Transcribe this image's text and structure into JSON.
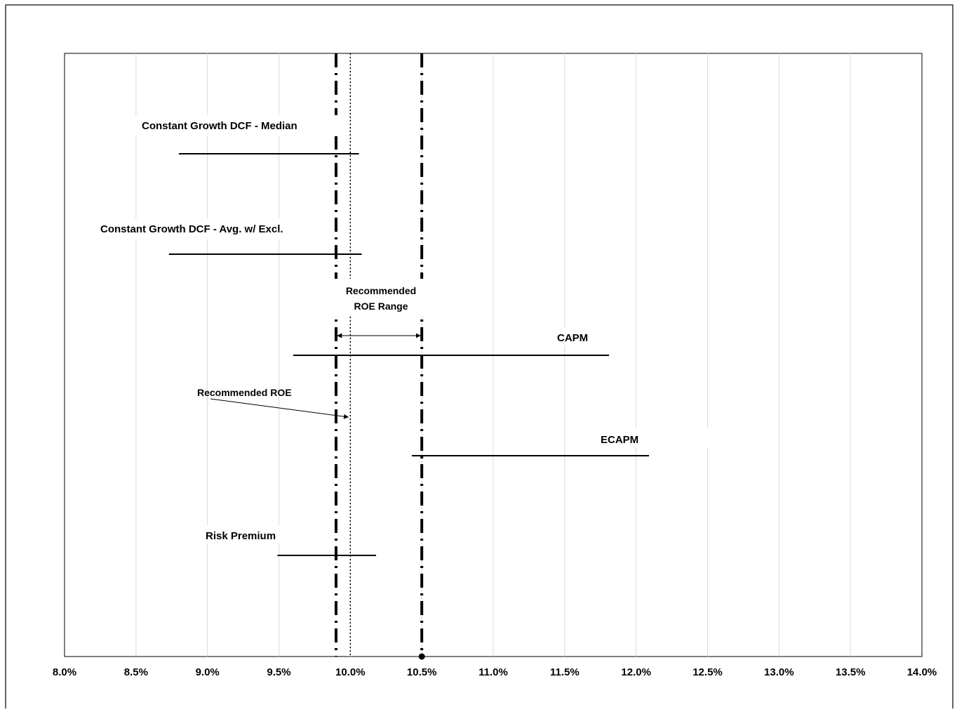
{
  "chart_data": {
    "type": "range",
    "title": "",
    "xlabel": "",
    "ylabel": "",
    "xlim": [
      8.0,
      14.0
    ],
    "x_ticks": [
      8.0,
      8.5,
      9.0,
      9.5,
      10.0,
      10.5,
      11.0,
      11.5,
      12.0,
      12.5,
      13.0,
      13.5,
      14.0
    ],
    "x_tick_labels": [
      "8.0%",
      "8.5%",
      "9.0%",
      "9.5%",
      "10.0%",
      "10.5%",
      "11.0%",
      "11.5%",
      "12.0%",
      "12.5%",
      "13.0%",
      "13.5%",
      "14.0%"
    ],
    "grid": "vertical",
    "series": [
      {
        "name": "Constant Growth DCF - Median",
        "low": 8.8,
        "high": 10.06
      },
      {
        "name": "Constant Growth DCF - Avg. w/ Excl.",
        "low": 8.73,
        "high": 10.08
      },
      {
        "name": "CAPM",
        "low": 9.6,
        "high": 11.81
      },
      {
        "name": "ECAPM",
        "low": 10.43,
        "high": 12.09
      },
      {
        "name": "Risk Premium",
        "low": 9.49,
        "high": 10.18
      }
    ],
    "recommended_range": {
      "low": 9.9,
      "high": 10.5,
      "label_line1": "Recommended",
      "label_line2": "ROE Range"
    },
    "recommended_roe": {
      "value": 10.0,
      "label": "Recommended ROE"
    }
  }
}
